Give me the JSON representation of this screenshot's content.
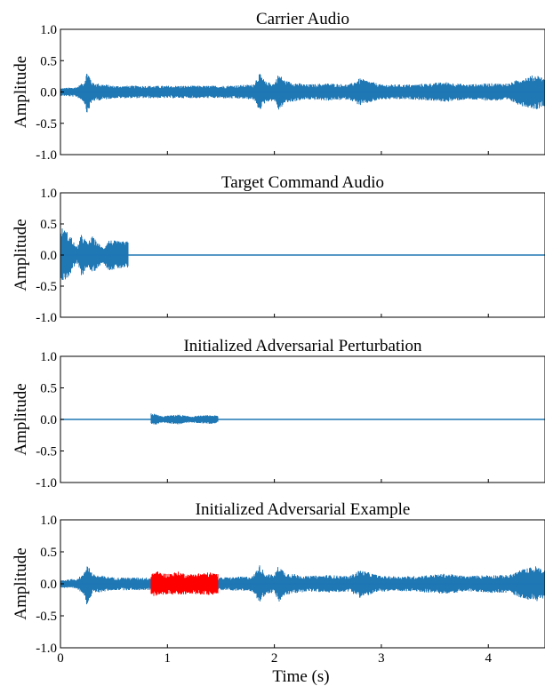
{
  "chart_data": [
    {
      "type": "line",
      "title": "Carrier Audio",
      "ylabel": "Amplitude",
      "xlabel": "",
      "ylim": [
        -1.0,
        1.0
      ],
      "yticks": [
        "1.0",
        "0.5",
        "0.0",
        "-0.5",
        "-1.0"
      ],
      "xlim": [
        0,
        4.53
      ],
      "xticks": [
        0,
        1,
        2,
        3,
        4
      ],
      "xtick_labels_shown": false,
      "grid": false,
      "series": [
        {
          "color": "#1f77b4",
          "kind": "waveform",
          "segments": [
            {
              "t_start": 0.0,
              "t_end": 4.53,
              "envelope": [
                [
                  0.0,
                  0.06
                ],
                [
                  0.15,
                  0.08
                ],
                [
                  0.22,
                  0.16
                ],
                [
                  0.25,
                  0.35
                ],
                [
                  0.3,
                  0.15
                ],
                [
                  0.5,
                  0.1
                ],
                [
                  0.8,
                  0.1
                ],
                [
                  1.0,
                  0.1
                ],
                [
                  1.2,
                  0.1
                ],
                [
                  1.5,
                  0.1
                ],
                [
                  1.8,
                  0.12
                ],
                [
                  1.86,
                  0.3
                ],
                [
                  1.92,
                  0.16
                ],
                [
                  2.0,
                  0.14
                ],
                [
                  2.04,
                  0.3
                ],
                [
                  2.1,
                  0.18
                ],
                [
                  2.3,
                  0.12
                ],
                [
                  2.5,
                  0.14
                ],
                [
                  2.7,
                  0.12
                ],
                [
                  2.8,
                  0.22
                ],
                [
                  3.0,
                  0.12
                ],
                [
                  3.3,
                  0.12
                ],
                [
                  3.6,
                  0.16
                ],
                [
                  3.8,
                  0.12
                ],
                [
                  4.0,
                  0.14
                ],
                [
                  4.2,
                  0.14
                ],
                [
                  4.3,
                  0.22
                ],
                [
                  4.45,
                  0.28
                ],
                [
                  4.53,
                  0.22
                ]
              ]
            }
          ]
        }
      ]
    },
    {
      "type": "line",
      "title": "Target Command Audio",
      "ylabel": "Amplitude",
      "xlabel": "",
      "ylim": [
        -1.0,
        1.0
      ],
      "yticks": [
        "1.0",
        "0.5",
        "0.0",
        "-0.5",
        "-1.0"
      ],
      "xlim": [
        0,
        4.53
      ],
      "xticks": [
        0,
        1,
        2,
        3,
        4
      ],
      "xtick_labels_shown": false,
      "grid": false,
      "series": [
        {
          "color": "#1f77b4",
          "kind": "waveform",
          "segments": [
            {
              "t_start": 0.0,
              "t_end": 0.63,
              "envelope": [
                [
                  0.0,
                  0.45
                ],
                [
                  0.05,
                  0.4
                ],
                [
                  0.1,
                  0.3
                ],
                [
                  0.15,
                  0.12
                ],
                [
                  0.2,
                  0.35
                ],
                [
                  0.25,
                  0.2
                ],
                [
                  0.3,
                  0.3
                ],
                [
                  0.35,
                  0.2
                ],
                [
                  0.4,
                  0.12
                ],
                [
                  0.45,
                  0.25
                ],
                [
                  0.55,
                  0.22
                ],
                [
                  0.63,
                  0.22
                ]
              ]
            }
          ]
        }
      ]
    },
    {
      "type": "line",
      "title": "Initialized Adversarial Perturbation",
      "ylabel": "Amplitude",
      "xlabel": "",
      "ylim": [
        -1.0,
        1.0
      ],
      "yticks": [
        "1.0",
        "0.5",
        "0.0",
        "-0.5",
        "-1.0"
      ],
      "xlim": [
        0,
        4.53
      ],
      "xticks": [
        0,
        1,
        2,
        3,
        4
      ],
      "xtick_labels_shown": false,
      "grid": false,
      "series": [
        {
          "color": "#1f77b4",
          "kind": "waveform",
          "segments": [
            {
              "t_start": 0.85,
              "t_end": 1.47,
              "envelope": [
                [
                  0.85,
                  0.1
                ],
                [
                  0.9,
                  0.08
                ],
                [
                  0.95,
                  0.05
                ],
                [
                  1.0,
                  0.06
                ],
                [
                  1.1,
                  0.08
                ],
                [
                  1.2,
                  0.05
                ],
                [
                  1.3,
                  0.06
                ],
                [
                  1.4,
                  0.07
                ],
                [
                  1.47,
                  0.06
                ]
              ]
            }
          ]
        }
      ]
    },
    {
      "type": "line",
      "title": "Initialized Adversarial Example",
      "ylabel": "Amplitude",
      "xlabel": "Time (s)",
      "ylim": [
        -1.0,
        1.0
      ],
      "yticks": [
        "1.0",
        "0.5",
        "0.0",
        "-0.5",
        "-1.0"
      ],
      "xlim": [
        0,
        4.53
      ],
      "xticks": [
        0,
        1,
        2,
        3,
        4
      ],
      "xtick_labels": [
        "0",
        "1",
        "2",
        "3",
        "4"
      ],
      "xtick_labels_shown": true,
      "grid": false,
      "series": [
        {
          "color": "#1f77b4",
          "kind": "waveform",
          "segments": [
            {
              "t_start": 0.0,
              "t_end": 4.53,
              "envelope": [
                [
                  0.0,
                  0.06
                ],
                [
                  0.15,
                  0.08
                ],
                [
                  0.22,
                  0.16
                ],
                [
                  0.25,
                  0.35
                ],
                [
                  0.3,
                  0.15
                ],
                [
                  0.5,
                  0.1
                ],
                [
                  0.8,
                  0.1
                ],
                [
                  1.0,
                  0.1
                ],
                [
                  1.2,
                  0.1
                ],
                [
                  1.5,
                  0.1
                ],
                [
                  1.8,
                  0.12
                ],
                [
                  1.86,
                  0.3
                ],
                [
                  1.92,
                  0.16
                ],
                [
                  2.0,
                  0.14
                ],
                [
                  2.04,
                  0.3
                ],
                [
                  2.1,
                  0.18
                ],
                [
                  2.3,
                  0.12
                ],
                [
                  2.5,
                  0.14
                ],
                [
                  2.7,
                  0.12
                ],
                [
                  2.8,
                  0.22
                ],
                [
                  3.0,
                  0.12
                ],
                [
                  3.3,
                  0.12
                ],
                [
                  3.6,
                  0.16
                ],
                [
                  3.8,
                  0.12
                ],
                [
                  4.0,
                  0.14
                ],
                [
                  4.2,
                  0.14
                ],
                [
                  4.3,
                  0.22
                ],
                [
                  4.45,
                  0.28
                ],
                [
                  4.53,
                  0.22
                ]
              ]
            }
          ]
        },
        {
          "color": "#ff0000",
          "kind": "waveform",
          "segments": [
            {
              "t_start": 0.85,
              "t_end": 1.47,
              "envelope": [
                [
                  0.85,
                  0.18
                ],
                [
                  0.9,
                  0.2
                ],
                [
                  0.95,
                  0.17
                ],
                [
                  1.0,
                  0.16
                ],
                [
                  1.1,
                  0.19
                ],
                [
                  1.2,
                  0.15
                ],
                [
                  1.3,
                  0.17
                ],
                [
                  1.4,
                  0.18
                ],
                [
                  1.47,
                  0.16
                ]
              ]
            }
          ]
        }
      ]
    }
  ]
}
